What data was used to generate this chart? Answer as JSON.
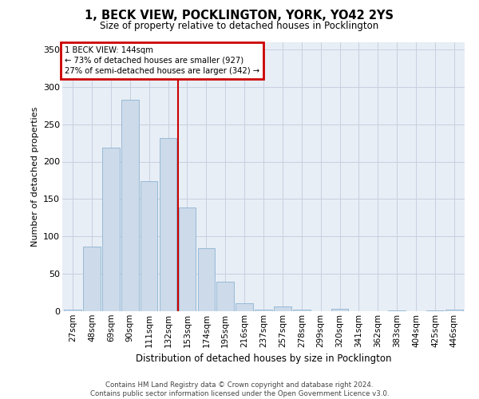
{
  "title": "1, BECK VIEW, POCKLINGTON, YORK, YO42 2YS",
  "subtitle": "Size of property relative to detached houses in Pocklington",
  "xlabel": "Distribution of detached houses by size in Pocklington",
  "ylabel": "Number of detached properties",
  "footer_line1": "Contains HM Land Registry data © Crown copyright and database right 2024.",
  "footer_line2": "Contains public sector information licensed under the Open Government Licence v3.0.",
  "annotation_title": "1 BECK VIEW: 144sqm",
  "annotation_line1": "← 73% of detached houses are smaller (927)",
  "annotation_line2": "27% of semi-detached houses are larger (342) →",
  "bar_color": "#ccdaea",
  "bar_edge_color": "#8db4d0",
  "red_line_color": "#cc0000",
  "annotation_box_edge_color": "#cc0000",
  "grid_color": "#c8d0df",
  "background_color": "#e8eef6",
  "title_color": "#000000",
  "categories": [
    "27sqm",
    "48sqm",
    "69sqm",
    "90sqm",
    "111sqm",
    "132sqm",
    "153sqm",
    "174sqm",
    "195sqm",
    "216sqm",
    "237sqm",
    "257sqm",
    "278sqm",
    "299sqm",
    "320sqm",
    "341sqm",
    "362sqm",
    "383sqm",
    "404sqm",
    "425sqm",
    "446sqm"
  ],
  "values": [
    2,
    86,
    219,
    283,
    174,
    232,
    139,
    84,
    39,
    11,
    2,
    6,
    2,
    0,
    3,
    0,
    0,
    1,
    0,
    1,
    2
  ],
  "red_line_bin_index": 6,
  "ylim": [
    0,
    360
  ],
  "yticks": [
    0,
    50,
    100,
    150,
    200,
    250,
    300,
    350
  ],
  "figsize": [
    6.0,
    5.0
  ],
  "dpi": 100
}
